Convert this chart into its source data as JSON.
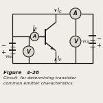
{
  "title_figure": "Figure   4-26",
  "caption_line1": "Circuit  for determining transistor",
  "caption_line2": "common emitter characteristics.",
  "bg_color": "#f0ede8",
  "line_color": "#1a1a1a",
  "circle_fill": "#ddd8d0",
  "text_color": "#1a1a1a"
}
